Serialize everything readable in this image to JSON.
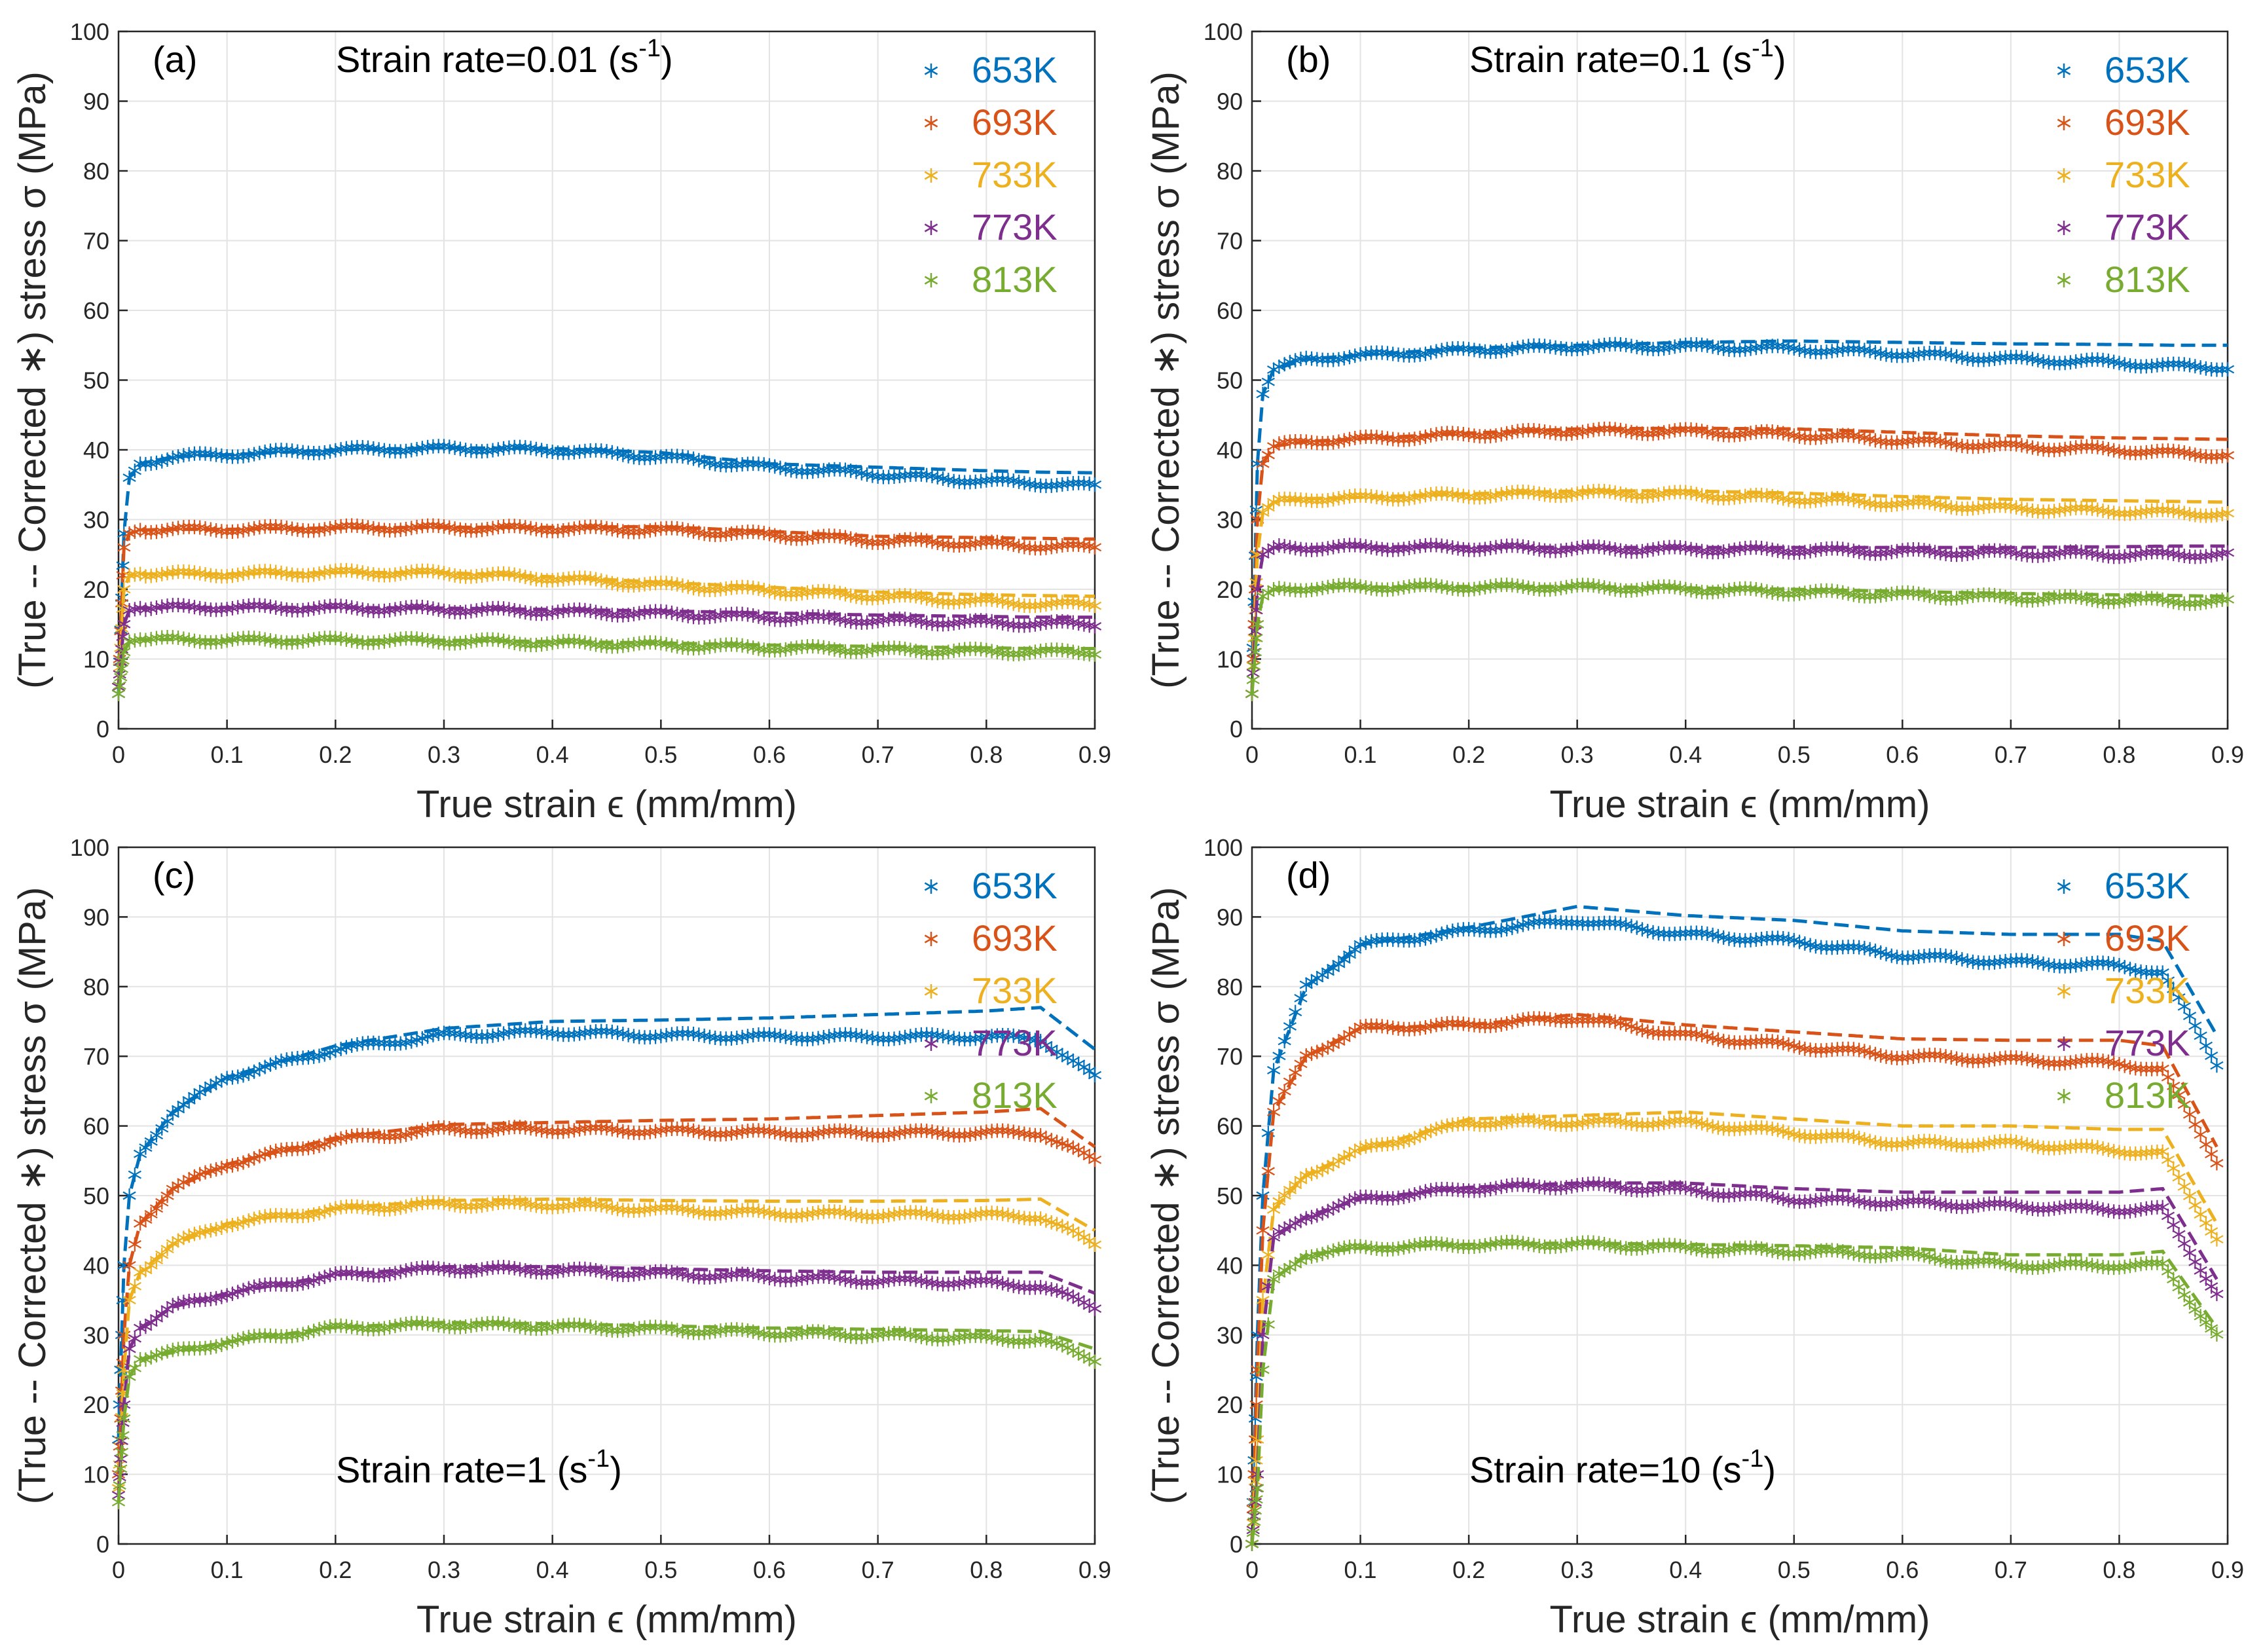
{
  "chart_data": [
    {
      "type": "line",
      "panel_label": "(a)",
      "annotation": {
        "prefix": "Strain rate=0.01 (s",
        "sup": "-1",
        "suffix": ")",
        "position": "top"
      },
      "xlabel": "True strain ϵ (mm/mm)",
      "ylabel": "(True -- Corrected ∗) stress σ (MPa)",
      "xlim": [
        0,
        0.9
      ],
      "ylim": [
        0,
        100
      ],
      "xticks": [
        "0",
        "0.1",
        "0.2",
        "0.3",
        "0.4",
        "0.5",
        "0.6",
        "0.7",
        "0.8",
        "0.9"
      ],
      "yticks": [
        "0",
        "10",
        "20",
        "30",
        "40",
        "50",
        "60",
        "70",
        "80",
        "90",
        "100"
      ],
      "grid": true,
      "legend_position": "top-right",
      "x": [
        0,
        0.005,
        0.01,
        0.02,
        0.05,
        0.1,
        0.2,
        0.3,
        0.4,
        0.5,
        0.6,
        0.7,
        0.8,
        0.85,
        0.9
      ],
      "series": [
        {
          "name": "653K",
          "color": "#0072BD",
          "true": [
            5,
            28,
            36,
            38,
            39,
            39.3,
            40,
            40.2,
            40,
            39,
            37.5,
            36.5,
            35.5,
            35.2,
            34.8
          ],
          "corrected": [
            5,
            28,
            36,
            38,
            39,
            39.3,
            40,
            40.3,
            40.2,
            39.6,
            38,
            37.5,
            37,
            36.8,
            36.7
          ]
        },
        {
          "name": "693K",
          "color": "#D95319",
          "true": [
            6,
            26,
            28,
            28.5,
            28.6,
            28.6,
            28.8,
            28.8,
            28.7,
            28.5,
            27.8,
            27,
            26.5,
            26.2,
            26
          ],
          "corrected": [
            6,
            26,
            28,
            28.5,
            28.6,
            28.6,
            28.8,
            28.9,
            28.9,
            29,
            28.3,
            27.6,
            27.4,
            27.3,
            27.2
          ]
        },
        {
          "name": "733K",
          "color": "#EDB120",
          "true": [
            6,
            20,
            22,
            22.2,
            22.2,
            22.2,
            22.4,
            22.3,
            21.6,
            20.6,
            19.8,
            19,
            18.2,
            17.9,
            17.8
          ],
          "corrected": [
            6,
            20,
            22,
            22.2,
            22.2,
            22.2,
            22.4,
            22.4,
            21.8,
            21,
            20.3,
            19.6,
            19.2,
            19.1,
            19
          ]
        },
        {
          "name": "773K",
          "color": "#7E2F8E",
          "true": [
            6,
            15,
            17,
            17.3,
            17.4,
            17.4,
            17.3,
            17.1,
            16.8,
            16.5,
            16,
            15.5,
            15.2,
            15.1,
            15
          ],
          "corrected": [
            6,
            15,
            17,
            17.3,
            17.4,
            17.4,
            17.4,
            17.3,
            17.1,
            16.9,
            16.6,
            16.3,
            16.1,
            16,
            16
          ]
        },
        {
          "name": "813K",
          "color": "#77AC30",
          "true": [
            5,
            11,
            12.5,
            12.8,
            12.8,
            12.7,
            12.7,
            12.6,
            12.3,
            12,
            11.6,
            11.3,
            11.1,
            11,
            11
          ],
          "corrected": [
            5,
            11,
            12.5,
            12.8,
            12.8,
            12.7,
            12.7,
            12.7,
            12.5,
            12.3,
            12,
            11.8,
            11.6,
            11.5,
            11.5
          ]
        }
      ]
    },
    {
      "type": "line",
      "panel_label": "(b)",
      "annotation": {
        "prefix": "Strain rate=0.1 (s",
        "sup": "-1",
        "suffix": ")",
        "position": "top"
      },
      "xlabel": "True strain ϵ (mm/mm)",
      "ylabel": "(True -- Corrected ∗) stress σ (MPa)",
      "xlim": [
        0,
        0.9
      ],
      "ylim": [
        0,
        100
      ],
      "xticks": [
        "0",
        "0.1",
        "0.2",
        "0.3",
        "0.4",
        "0.5",
        "0.6",
        "0.7",
        "0.8",
        "0.9"
      ],
      "yticks": [
        "0",
        "10",
        "20",
        "30",
        "40",
        "50",
        "60",
        "70",
        "80",
        "90",
        "100"
      ],
      "grid": true,
      "legend_position": "top-right",
      "x": [
        0,
        0.005,
        0.01,
        0.02,
        0.05,
        0.1,
        0.2,
        0.3,
        0.4,
        0.5,
        0.6,
        0.7,
        0.8,
        0.85,
        0.9
      ],
      "series": [
        {
          "name": "653K",
          "color": "#0072BD",
          "true": [
            5,
            38,
            48,
            51.5,
            53,
            53.5,
            54.3,
            54.8,
            54.8,
            54.5,
            53.8,
            53,
            52.5,
            52,
            51.8
          ],
          "corrected": [
            5,
            38,
            48,
            51.5,
            53,
            53.6,
            54.6,
            55,
            55.4,
            55.6,
            55.4,
            55.2,
            55.1,
            55,
            55
          ]
        },
        {
          "name": "693K",
          "color": "#D95319",
          "true": [
            5,
            30,
            38,
            40.5,
            41.2,
            41.5,
            42.2,
            42.7,
            42.6,
            42.2,
            41.3,
            40.5,
            40,
            39.5,
            39.3
          ],
          "corrected": [
            5,
            30,
            38,
            40.5,
            41.2,
            41.6,
            42.4,
            43,
            43.1,
            43,
            42.5,
            42,
            41.7,
            41.6,
            41.5
          ]
        },
        {
          "name": "733K",
          "color": "#EDB120",
          "true": [
            5,
            25,
            31,
            32.5,
            33,
            33.1,
            33.5,
            33.8,
            33.6,
            33,
            32.3,
            31.6,
            31.2,
            31,
            30.8
          ],
          "corrected": [
            5,
            25,
            31,
            32.5,
            33,
            33.2,
            33.7,
            34.1,
            34.1,
            33.8,
            33.3,
            32.9,
            32.7,
            32.6,
            32.5
          ]
        },
        {
          "name": "773K",
          "color": "#7E2F8E",
          "true": [
            5,
            20,
            25,
            26,
            26,
            26,
            26,
            25.8,
            25.7,
            25.6,
            25.4,
            25.2,
            25,
            25,
            25
          ],
          "corrected": [
            5,
            20,
            25,
            26,
            26,
            26.1,
            26.1,
            26,
            26,
            26,
            26,
            26,
            26.1,
            26.2,
            26.2
          ]
        },
        {
          "name": "813K",
          "color": "#77AC30",
          "true": [
            5,
            15,
            19,
            20,
            20.2,
            20.3,
            20.3,
            20.3,
            20,
            19.6,
            19.2,
            18.8,
            18.5,
            18.3,
            18.2
          ],
          "corrected": [
            5,
            15,
            19,
            20,
            20.2,
            20.3,
            20.4,
            20.4,
            20.2,
            20,
            19.7,
            19.4,
            19.2,
            19.1,
            19
          ]
        }
      ]
    },
    {
      "type": "line",
      "panel_label": "(c)",
      "annotation": {
        "prefix": "Strain rate=1 (s",
        "sup": "-1",
        "suffix": ")",
        "position": "bottom"
      },
      "xlabel": "True strain ϵ (mm/mm)",
      "ylabel": "(True -- Corrected ∗) stress σ (MPa)",
      "xlim": [
        0,
        0.9
      ],
      "ylim": [
        0,
        100
      ],
      "xticks": [
        "0",
        "0.1",
        "0.2",
        "0.3",
        "0.4",
        "0.5",
        "0.6",
        "0.7",
        "0.8",
        "0.9"
      ],
      "yticks": [
        "0",
        "10",
        "20",
        "30",
        "40",
        "50",
        "60",
        "70",
        "80",
        "90",
        "100"
      ],
      "grid": true,
      "legend_position": "top-right",
      "x": [
        0,
        0.005,
        0.01,
        0.02,
        0.05,
        0.1,
        0.2,
        0.3,
        0.4,
        0.5,
        0.6,
        0.7,
        0.8,
        0.85,
        0.9
      ],
      "series": [
        {
          "name": "653K",
          "color": "#0072BD",
          "true": [
            15,
            40,
            50,
            56,
            62,
            67,
            71,
            73,
            73.5,
            73,
            72.8,
            72.8,
            72.8,
            72.5,
            67
          ],
          "corrected": [
            15,
            40,
            50,
            56,
            62,
            67,
            71.5,
            74,
            75,
            75.2,
            75.5,
            76,
            76.5,
            77,
            71
          ]
        },
        {
          "name": "693K",
          "color": "#D95319",
          "true": [
            10,
            30,
            40,
            46,
            51,
            54.5,
            58,
            59.5,
            59.5,
            59.3,
            59,
            59,
            59,
            59,
            55
          ],
          "corrected": [
            10,
            30,
            40,
            46,
            51,
            54.5,
            58.3,
            60.2,
            60.5,
            60.8,
            61,
            61.5,
            62,
            62.5,
            57
          ]
        },
        {
          "name": "733K",
          "color": "#EDB120",
          "true": [
            8,
            25,
            35,
            39,
            43,
            46,
            48,
            48.8,
            48.7,
            48,
            47.5,
            47.3,
            47.2,
            47,
            43
          ],
          "corrected": [
            8,
            25,
            35,
            39,
            43,
            46,
            48.2,
            49.3,
            49.5,
            49.3,
            49.2,
            49.2,
            49.3,
            49.5,
            45
          ]
        },
        {
          "name": "773K",
          "color": "#7E2F8E",
          "true": [
            7,
            20,
            28,
            31,
            34,
            36,
            38.5,
            39.5,
            39.3,
            38.8,
            38.3,
            37.8,
            37.5,
            37,
            34
          ],
          "corrected": [
            7,
            20,
            28,
            31,
            34,
            36,
            38.6,
            39.8,
            39.8,
            39.5,
            39.2,
            39,
            39,
            39,
            36
          ]
        },
        {
          "name": "813K",
          "color": "#77AC30",
          "true": [
            6,
            18,
            24,
            26.5,
            27.5,
            29,
            31,
            31.5,
            31.2,
            30.8,
            30.3,
            30,
            29.5,
            29.3,
            26.5
          ],
          "corrected": [
            6,
            18,
            24,
            26.5,
            27.5,
            29,
            31.1,
            31.8,
            31.6,
            31.3,
            31,
            30.8,
            30.6,
            30.5,
            28
          ]
        }
      ]
    },
    {
      "type": "line",
      "panel_label": "(d)",
      "annotation": {
        "prefix": "Strain rate=10 (s",
        "sup": "-1",
        "suffix": ")",
        "position": "bottom"
      },
      "xlabel": "True strain ϵ (mm/mm)",
      "ylabel": "(True -- Corrected ∗) stress σ (MPa)",
      "xlim": [
        0,
        0.9
      ],
      "ylim": [
        0,
        100
      ],
      "xticks": [
        "0",
        "0.1",
        "0.2",
        "0.3",
        "0.4",
        "0.5",
        "0.6",
        "0.7",
        "0.8",
        "0.9"
      ],
      "yticks": [
        "0",
        "10",
        "20",
        "30",
        "40",
        "50",
        "60",
        "70",
        "80",
        "90",
        "100"
      ],
      "grid": true,
      "legend_position": "top-right",
      "x": [
        0,
        0.005,
        0.01,
        0.02,
        0.05,
        0.1,
        0.2,
        0.3,
        0.4,
        0.5,
        0.6,
        0.7,
        0.8,
        0.84,
        0.89
      ],
      "series": [
        {
          "name": "653K",
          "color": "#0072BD",
          "true": [
            0,
            30,
            50,
            68,
            80,
            86,
            88,
            89.5,
            87.5,
            86.5,
            84.5,
            83.5,
            83,
            82,
            69
          ],
          "corrected": [
            0,
            30,
            50,
            68,
            80,
            86,
            88.5,
            91.5,
            90.2,
            89.5,
            88,
            87.5,
            87.5,
            86.5,
            73
          ]
        },
        {
          "name": "693K",
          "color": "#D95319",
          "true": [
            0,
            25,
            45,
            62,
            70,
            74,
            74.5,
            75.5,
            73,
            71.5,
            70,
            69.5,
            69,
            68,
            55
          ],
          "corrected": [
            0,
            25,
            45,
            62,
            70,
            74,
            74.5,
            76,
            74.5,
            73.5,
            72.5,
            72.3,
            72.3,
            71.5,
            57
          ]
        },
        {
          "name": "733K",
          "color": "#EDB120",
          "true": [
            0,
            15,
            35,
            48,
            53,
            56.5,
            60.5,
            60.5,
            60.5,
            59,
            57.5,
            57.5,
            56.5,
            56,
            44
          ],
          "corrected": [
            0,
            15,
            35,
            48,
            53,
            56.5,
            61,
            61.5,
            62,
            61,
            60,
            60,
            59.5,
            59.5,
            46
          ]
        },
        {
          "name": "773K",
          "color": "#7E2F8E",
          "true": [
            0,
            10,
            30,
            44,
            47,
            49.5,
            51,
            51.5,
            50.8,
            49.5,
            49,
            48.5,
            48,
            48,
            36
          ],
          "corrected": [
            0,
            10,
            30,
            44,
            47,
            49.5,
            51.2,
            51.8,
            51.8,
            51,
            50.5,
            50.5,
            50.5,
            51,
            38
          ]
        },
        {
          "name": "813K",
          "color": "#77AC30",
          "true": [
            0,
            8,
            25,
            38,
            41.5,
            42.5,
            43,
            43,
            42.5,
            42,
            41.5,
            40,
            40,
            40,
            30
          ],
          "corrected": [
            0,
            8,
            25,
            38,
            41.5,
            42.5,
            43,
            43.2,
            43,
            42.8,
            42.5,
            41.5,
            41.5,
            42,
            31
          ]
        }
      ]
    }
  ]
}
